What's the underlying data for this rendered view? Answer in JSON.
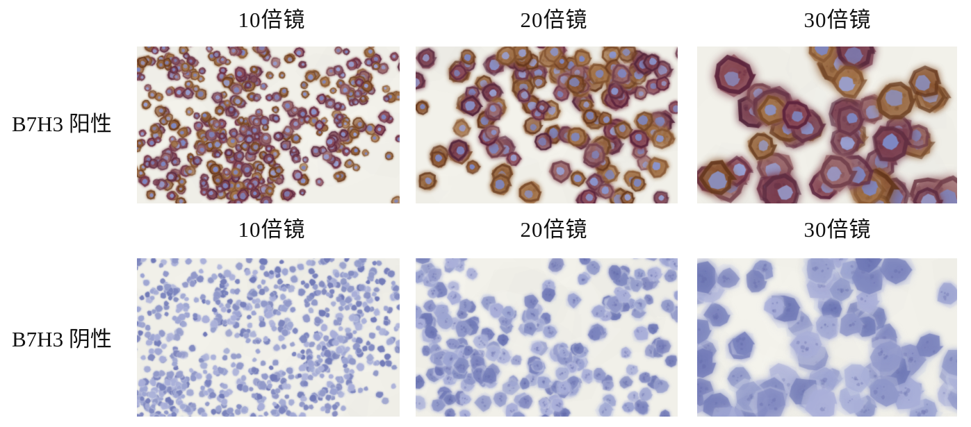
{
  "figure": {
    "column_headers": [
      "10倍镜",
      "20倍镜",
      "30倍镜"
    ],
    "rows": [
      {
        "label": "B7H3 阳性",
        "stain": "positive"
      },
      {
        "label": "B7H3 阴性",
        "stain": "negative"
      }
    ]
  },
  "micrograph_render": {
    "colors": {
      "field_bg": "#f1f0e9",
      "field_mottle_dark": "#e8e9de",
      "field_mottle_light": "#f7f6f0",
      "positive_pairs": [
        [
          "#9a6a43",
          "#6b3f22"
        ],
        [
          "#84505e",
          "#5c2940"
        ],
        [
          "#a5764d",
          "#7a4a28"
        ],
        [
          "#7c4152",
          "#4f2238"
        ],
        [
          "#8e5a36",
          "#5e3118"
        ],
        [
          "#9b6a6e",
          "#6d3a46"
        ],
        [
          "#8a4a58",
          "#58203a"
        ]
      ],
      "nucleus_blue": [
        "#8b94cb",
        "#99a0d2",
        "#7e88c4"
      ],
      "negative_nucleus": [
        "#8f97c8",
        "#9ba3d1",
        "#7a83bd",
        "#a8aed8",
        "#6f78b6"
      ],
      "negative_cytoplasm": "#d3d7e8",
      "chromatin": "#5f68a8"
    },
    "panels": [
      {
        "name": "positive-10x",
        "magnification": "10倍镜",
        "stain": "positive",
        "seed": 11,
        "count": 520,
        "rmin": 4.5,
        "rmax": 8.5,
        "clusters": 18,
        "spread": 66
      },
      {
        "name": "positive-20x",
        "magnification": "20倍镜",
        "stain": "positive",
        "seed": 22,
        "count": 175,
        "rmin": 9.5,
        "rmax": 15.5,
        "clusters": 11,
        "spread": 88
      },
      {
        "name": "positive-30x",
        "magnification": "30倍镜",
        "stain": "positive",
        "seed": 33,
        "count": 62,
        "rmin": 18,
        "rmax": 29,
        "clusters": 7,
        "spread": 120
      },
      {
        "name": "negative-10x",
        "magnification": "10倍镜",
        "stain": "negative",
        "seed": 44,
        "count": 900,
        "rmin": 3,
        "rmax": 5.5,
        "clusters": 26,
        "spread": 58
      },
      {
        "name": "negative-20x",
        "magnification": "20倍镜",
        "stain": "negative",
        "seed": 55,
        "count": 285,
        "rmin": 7,
        "rmax": 11.5,
        "clusters": 13,
        "spread": 82
      },
      {
        "name": "negative-30x",
        "magnification": "30倍镜",
        "stain": "negative",
        "seed": 66,
        "count": 95,
        "rmin": 14,
        "rmax": 23,
        "clusters": 8,
        "spread": 110
      }
    ]
  }
}
